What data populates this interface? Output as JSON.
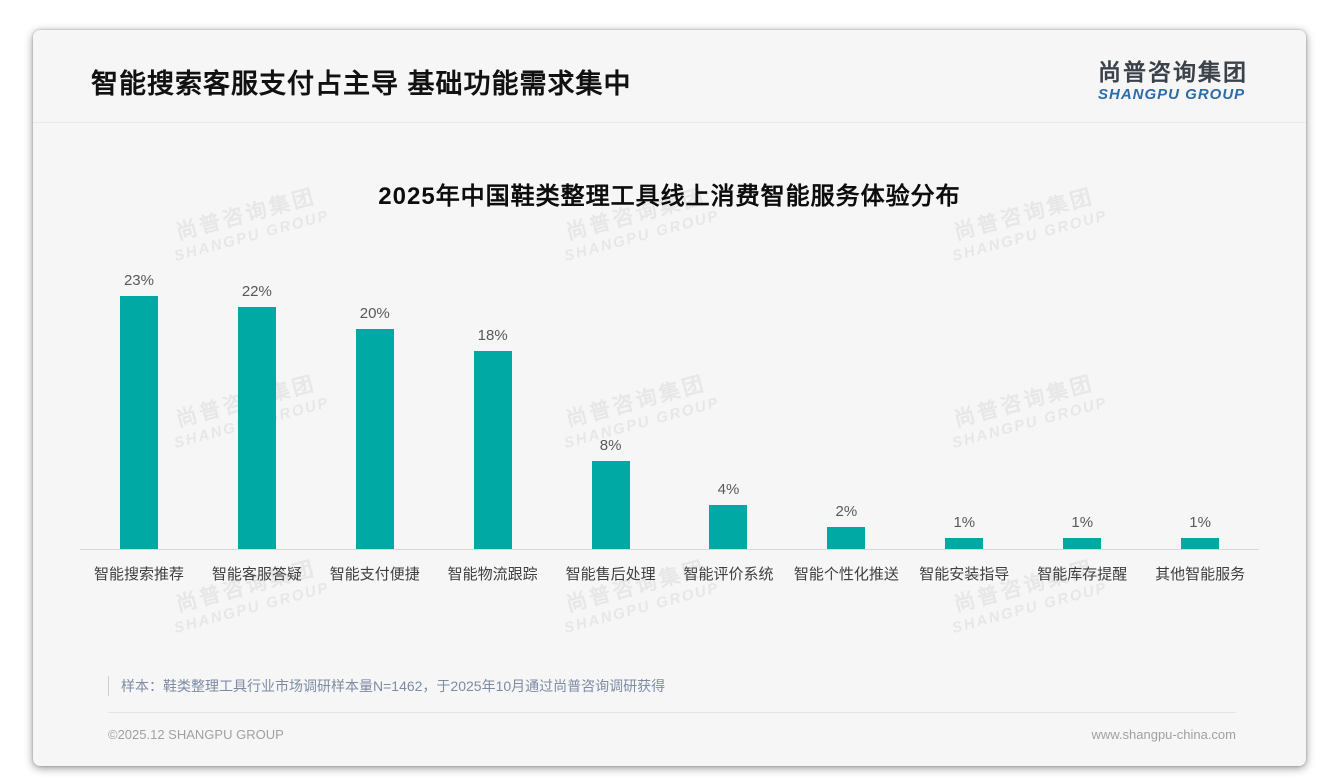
{
  "page": {
    "title": "智能搜索客服支付占主导 基础功能需求集中",
    "logo": {
      "cn": "尚普咨询集团",
      "en": "SHANGPU GROUP"
    },
    "watermark": {
      "cn": "尚普咨询集团",
      "en": "SHANGPU GROUP"
    },
    "footnote": "样本：鞋类整理工具行业市场调研样本量N=1462，于2025年10月通过尚普咨询调研获得",
    "footer": {
      "left": "©2025.12 SHANGPU GROUP",
      "right": "www.shangpu-china.com"
    }
  },
  "chart_data": {
    "type": "bar",
    "title": "2025年中国鞋类整理工具线上消费智能服务体验分布",
    "categories": [
      "智能搜索推荐",
      "智能客服答疑",
      "智能支付便捷",
      "智能物流跟踪",
      "智能售后处理",
      "智能评价系统",
      "智能个性化推送",
      "智能安装指导",
      "智能库存提醒",
      "其他智能服务"
    ],
    "values": [
      23,
      22,
      20,
      18,
      8,
      4,
      2,
      1,
      1,
      1
    ],
    "value_labels": [
      "23%",
      "22%",
      "20%",
      "18%",
      "8%",
      "4%",
      "2%",
      "1%",
      "1%",
      "1%"
    ],
    "bar_color": "#00a9a4",
    "ylabel": "",
    "xlabel": "",
    "ylim": [
      0,
      25
    ],
    "grid": false,
    "legend_position": "none"
  }
}
